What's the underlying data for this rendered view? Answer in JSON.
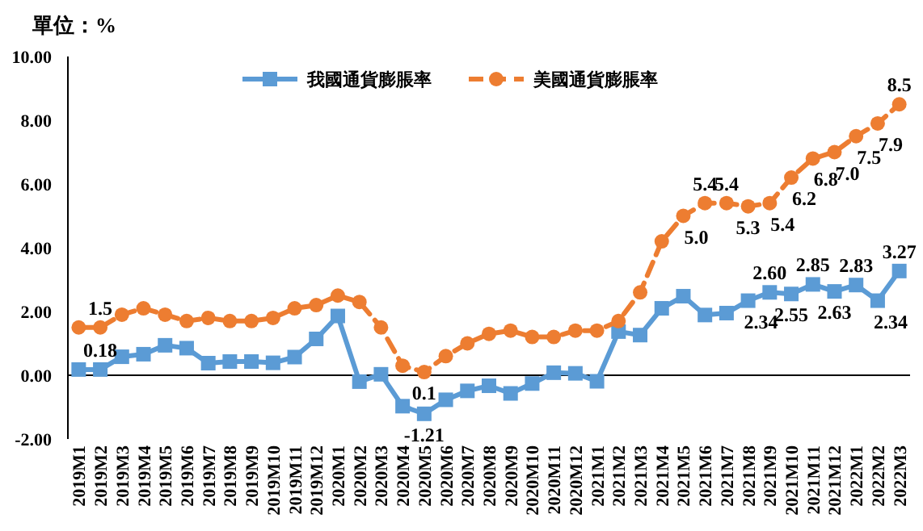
{
  "chart_data": {
    "type": "line",
    "ylabel": "單位：%",
    "categories": [
      "2019M1",
      "2019M2",
      "2019M3",
      "2019M4",
      "2019M5",
      "2019M6",
      "2019M7",
      "2019M8",
      "2019M9",
      "2019M10",
      "2019M11",
      "2019M12",
      "2020M1",
      "2020M2",
      "2020M3",
      "2020M4",
      "2020M5",
      "2020M6",
      "2020M7",
      "2020M8",
      "2020M9",
      "2020M10",
      "2020M11",
      "2020M12",
      "2021M1",
      "2021M2",
      "2021M3",
      "2021M4",
      "2021M5",
      "2021M6",
      "2021M7",
      "2021M8",
      "2021M9",
      "2021M10",
      "2021M11",
      "2021M12",
      "2022M1",
      "2022M2",
      "2022M3"
    ],
    "ylim": [
      -2,
      10
    ],
    "yticks": [
      {
        "value": -2,
        "label": "-2.00"
      },
      {
        "value": 0,
        "label": "0.00"
      },
      {
        "value": 2,
        "label": "2.00"
      },
      {
        "value": 4,
        "label": "4.00"
      },
      {
        "value": 6,
        "label": "6.00"
      },
      {
        "value": 8,
        "label": "8.00"
      },
      {
        "value": 10,
        "label": "10.00"
      }
    ],
    "legend": "top",
    "series": [
      {
        "name": "我國通貨膨脹率",
        "color": "#5b9bd5",
        "marker": "square",
        "line_style": "solid",
        "values": [
          0.18,
          0.18,
          0.58,
          0.66,
          0.94,
          0.85,
          0.38,
          0.43,
          0.43,
          0.39,
          0.57,
          1.14,
          1.86,
          -0.2,
          0.03,
          -0.97,
          -1.21,
          -0.77,
          -0.49,
          -0.33,
          -0.57,
          -0.26,
          0.08,
          0.06,
          -0.19,
          1.37,
          1.26,
          2.1,
          2.48,
          1.89,
          1.95,
          2.34,
          2.6,
          2.55,
          2.85,
          2.63,
          2.83,
          2.34,
          3.27
        ],
        "value_labels": [
          null,
          "0.18",
          null,
          null,
          null,
          null,
          null,
          null,
          null,
          null,
          null,
          null,
          null,
          null,
          null,
          null,
          "-1.21",
          null,
          null,
          null,
          null,
          null,
          null,
          null,
          null,
          null,
          null,
          null,
          null,
          null,
          null,
          "2.34",
          "2.60",
          "2.55",
          "2.85",
          "2.63",
          "2.83",
          "2.34",
          "3.27"
        ]
      },
      {
        "name": "美國通貨膨脹率",
        "color": "#ed7d31",
        "marker": "circle",
        "line_style": "dashed",
        "values": [
          1.5,
          1.5,
          1.9,
          2.1,
          1.9,
          1.7,
          1.8,
          1.7,
          1.7,
          1.8,
          2.1,
          2.2,
          2.5,
          2.3,
          1.5,
          0.3,
          0.1,
          0.6,
          1.0,
          1.3,
          1.4,
          1.2,
          1.2,
          1.4,
          1.4,
          1.7,
          2.6,
          4.2,
          5.0,
          5.4,
          5.4,
          5.3,
          5.4,
          6.2,
          6.8,
          7.0,
          7.5,
          7.9,
          8.5
        ],
        "value_labels": [
          null,
          "1.5",
          null,
          null,
          null,
          null,
          null,
          null,
          null,
          null,
          null,
          null,
          null,
          null,
          null,
          null,
          "0.1",
          null,
          null,
          null,
          null,
          null,
          null,
          null,
          null,
          null,
          null,
          null,
          "5.0",
          "5.4",
          "5.4",
          "5.3",
          "5.4",
          "6.2",
          "6.8",
          "7.0",
          "7.5",
          "7.9",
          "8.5"
        ]
      }
    ]
  }
}
